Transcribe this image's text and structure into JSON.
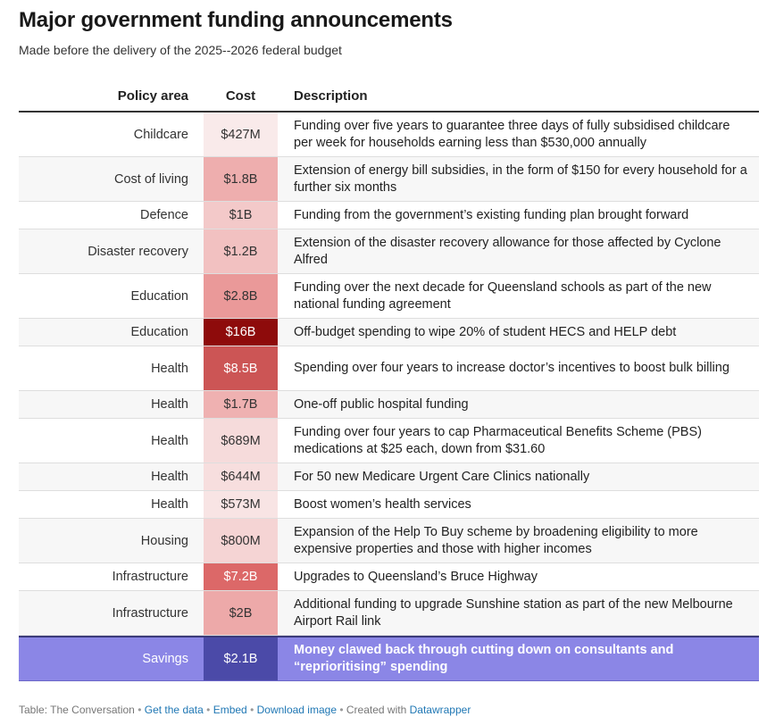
{
  "title": "Major government funding announcements",
  "subtitle": "Made before the delivery of the 2025--2026 federal budget",
  "columns": {
    "policy_area": "Policy area",
    "cost": "Cost",
    "description": "Description"
  },
  "rows": [
    {
      "area": "Childcare",
      "cost": "$427M",
      "value_millions": 427,
      "description": "Funding over five years to guarantee three days of fully subsidised childcare per week for households earning less than $530,000 annually"
    },
    {
      "area": "Cost of living",
      "cost": "$1.8B",
      "value_millions": 1800,
      "description": "Extension of energy bill subsidies, in the form of $150 for every household for a further six months"
    },
    {
      "area": "Defence",
      "cost": "$1B",
      "value_millions": 1000,
      "description": "Funding from the government’s existing funding plan brought forward"
    },
    {
      "area": "Disaster recovery",
      "cost": "$1.2B",
      "value_millions": 1200,
      "description": "Extension of the disaster recovery allowance for those affected by Cyclone Alfred"
    },
    {
      "area": "Education",
      "cost": "$2.8B",
      "value_millions": 2800,
      "description": "Funding over the next decade for Queensland schools as part of the new national funding agreement"
    },
    {
      "area": "Education",
      "cost": "$16B",
      "value_millions": 16000,
      "description": "Off-budget spending to wipe 20% of student HECS and HELP debt"
    },
    {
      "area": "Health",
      "cost": "$8.5B",
      "value_millions": 8500,
      "description": "Spending over four years to increase doctor’s incentives to boost bulk billing"
    },
    {
      "area": "Health",
      "cost": "$1.7B",
      "value_millions": 1700,
      "description": "One-off public hospital funding"
    },
    {
      "area": "Health",
      "cost": "$689M",
      "value_millions": 689,
      "description": "Funding over four years to cap Pharmaceutical Benefits Scheme (PBS) medications at $25 each, down from $31.60"
    },
    {
      "area": "Health",
      "cost": "$644M",
      "value_millions": 644,
      "description": "For 50 new Medicare Urgent Care Clinics nationally"
    },
    {
      "area": "Health",
      "cost": "$573M",
      "value_millions": 573,
      "description": "Boost women’s health services"
    },
    {
      "area": "Housing",
      "cost": "$800M",
      "value_millions": 800,
      "description": "Expansion of the Help To Buy scheme by broadening eligibility to more expensive properties and those with higher incomes"
    },
    {
      "area": "Infrastructure",
      "cost": "$7.2B",
      "value_millions": 7200,
      "description": "Upgrades to Queensland’s Bruce Highway"
    },
    {
      "area": "Infrastructure",
      "cost": "$2B",
      "value_millions": 2000,
      "description": "Additional funding to upgrade Sunshine station as part of the new Melbourne Airport Rail link"
    }
  ],
  "savings_row": {
    "area": "Savings",
    "cost": "$2.1B",
    "description": "Money clawed back through cutting down on consultants and “reprioritising” spending"
  },
  "footer": {
    "source": "Table: The Conversation",
    "get_data": "Get the data",
    "embed": "Embed",
    "download": "Download image",
    "created_with": "Created with",
    "datawrapper": "Datawrapper"
  },
  "colors": {
    "heat_low": "#f9eaea",
    "heat_high": "#8e0b0b",
    "savings_bg": "#8b86e6",
    "savings_cost_bg": "#4b4aa8"
  }
}
